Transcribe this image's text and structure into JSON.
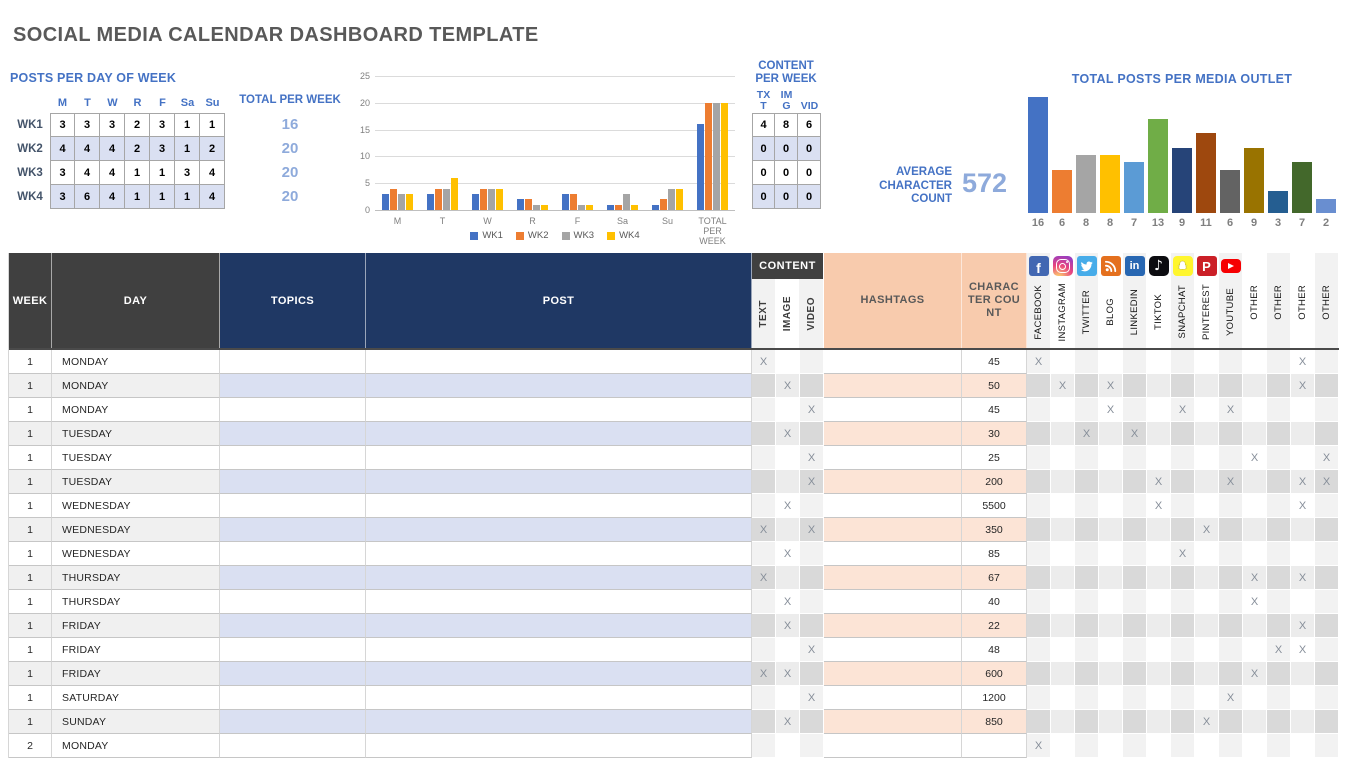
{
  "title": "SOCIAL MEDIA CALENDAR DASHBOARD TEMPLATE",
  "theme": {
    "accent_blue": "#4472C4",
    "light_blue_value": "#8EAADB",
    "navy_header": "#1F3864",
    "dark_gray_header": "#404040",
    "peach_header": "#F8CBAD",
    "peach_row": "#FCE4D6",
    "lavender_row": "#DAE0F2",
    "title_gray": "#595959"
  },
  "posts_per_day": {
    "heading": "POSTS PER DAY OF WEEK",
    "day_headers": [
      "M",
      "T",
      "W",
      "R",
      "F",
      "Sa",
      "Su"
    ],
    "rows": [
      {
        "label": "WK1",
        "values": [
          "3",
          "3",
          "3",
          "2",
          "3",
          "1",
          "1"
        ]
      },
      {
        "label": "WK2",
        "values": [
          "4",
          "4",
          "4",
          "2",
          "3",
          "1",
          "2"
        ]
      },
      {
        "label": "WK3",
        "values": [
          "3",
          "4",
          "4",
          "1",
          "1",
          "3",
          "4"
        ]
      },
      {
        "label": "WK4",
        "values": [
          "3",
          "6",
          "4",
          "1",
          "1",
          "1",
          "4"
        ]
      }
    ]
  },
  "totals_per_week": {
    "heading": "TOTAL PER WEEK",
    "values": [
      "16",
      "20",
      "20",
      "20"
    ]
  },
  "content_per_week": {
    "heading": "CONTENT PER WEEK",
    "columns": [
      "TXT",
      "IMG",
      "VID"
    ],
    "rows": [
      [
        "4",
        "8",
        "6"
      ],
      [
        "0",
        "0",
        "0"
      ],
      [
        "0",
        "0",
        "0"
      ],
      [
        "0",
        "0",
        "0"
      ]
    ]
  },
  "average_character_count": {
    "label": "AVERAGE CHARACTER COUNT",
    "value": "572"
  },
  "chart_data": [
    {
      "type": "bar",
      "title": "POSTS PER DAY OF WEEK BY WEEK",
      "categories": [
        "M",
        "T",
        "W",
        "R",
        "F",
        "Sa",
        "Su",
        "TOTAL PER WEEK"
      ],
      "series": [
        {
          "name": "WK1",
          "color": "#4472C4",
          "values": [
            3,
            3,
            3,
            2,
            3,
            1,
            1,
            16
          ]
        },
        {
          "name": "WK2",
          "color": "#ED7D31",
          "values": [
            4,
            4,
            4,
            2,
            3,
            1,
            2,
            20
          ]
        },
        {
          "name": "WK3",
          "color": "#A5A5A5",
          "values": [
            3,
            4,
            4,
            1,
            1,
            3,
            4,
            20
          ]
        },
        {
          "name": "WK4",
          "color": "#FFC000",
          "values": [
            3,
            6,
            4,
            1,
            1,
            1,
            4,
            20
          ]
        }
      ],
      "ylim": [
        0,
        25
      ],
      "yticks": [
        0,
        5,
        10,
        15,
        20,
        25
      ],
      "grid": true,
      "legend_position": "bottom"
    },
    {
      "type": "bar",
      "title": "TOTAL POSTS PER MEDIA OUTLET",
      "categories": [
        "FACEBOOK",
        "INSTAGRAM",
        "TWITTER",
        "BLOG",
        "LINKEDIN",
        "TIKTOK",
        "SNAPCHAT",
        "PINTEREST",
        "YOUTUBE",
        "OTHER",
        "OTHER",
        "OTHER",
        "OTHER"
      ],
      "values": [
        16,
        6,
        8,
        8,
        7,
        13,
        9,
        11,
        6,
        9,
        3,
        7,
        2
      ],
      "colors": [
        "#4472C4",
        "#ED7D31",
        "#A5A5A5",
        "#FFC000",
        "#5B9BD5",
        "#70AD47",
        "#264478",
        "#9E480E",
        "#636363",
        "#997300",
        "#255E91",
        "#43682B",
        "#698ED0"
      ],
      "value_labels": "below",
      "ylim": [
        0,
        16
      ],
      "grid": false,
      "legend_position": "none"
    }
  ],
  "table": {
    "mark": "X",
    "headers": {
      "week": "WEEK",
      "day": "DAY",
      "topics": "TOPICS",
      "post": "POST",
      "content_group": "CONTENT",
      "text": "TEXT",
      "image": "IMAGE",
      "video": "VIDEO",
      "hashtags": "HASHTAGS",
      "character_count": "CHARACTER COUNT"
    },
    "social_columns": [
      {
        "key": "facebook",
        "label": "FACEBOOK",
        "icon": "facebook-icon"
      },
      {
        "key": "instagram",
        "label": "INSTAGRAM",
        "icon": "instagram-icon"
      },
      {
        "key": "twitter",
        "label": "TWITTER",
        "icon": "twitter-icon"
      },
      {
        "key": "blog",
        "label": "BLOG",
        "icon": "blog-icon"
      },
      {
        "key": "linkedin",
        "label": "LINKEDIN",
        "icon": "linkedin-icon"
      },
      {
        "key": "tiktok",
        "label": "TIKTOK",
        "icon": "tiktok-icon"
      },
      {
        "key": "snapchat",
        "label": "SNAPCHAT",
        "icon": "snapchat-icon"
      },
      {
        "key": "pinterest",
        "label": "PINTEREST",
        "icon": "pinterest-icon"
      },
      {
        "key": "youtube",
        "label": "YOUTUBE",
        "icon": "youtube-icon"
      },
      {
        "key": "other1",
        "label": "OTHER",
        "icon": null
      },
      {
        "key": "other2",
        "label": "OTHER",
        "icon": null
      },
      {
        "key": "other3",
        "label": "OTHER",
        "icon": null
      },
      {
        "key": "other4",
        "label": "OTHER",
        "icon": null
      }
    ],
    "rows": [
      {
        "week": "1",
        "day": "MONDAY",
        "topics": "",
        "post": "",
        "content": [
          "text"
        ],
        "hashtags": "",
        "character_count": "45",
        "outlets": [
          "facebook",
          "other3"
        ]
      },
      {
        "week": "1",
        "day": "MONDAY",
        "topics": "",
        "post": "",
        "content": [
          "image"
        ],
        "hashtags": "",
        "character_count": "50",
        "outlets": [
          "instagram",
          "blog",
          "other3"
        ]
      },
      {
        "week": "1",
        "day": "MONDAY",
        "topics": "",
        "post": "",
        "content": [
          "video"
        ],
        "hashtags": "",
        "character_count": "45",
        "outlets": [
          "blog",
          "snapchat",
          "youtube"
        ]
      },
      {
        "week": "1",
        "day": "TUESDAY",
        "topics": "",
        "post": "",
        "content": [
          "image"
        ],
        "hashtags": "",
        "character_count": "30",
        "outlets": [
          "twitter",
          "linkedin"
        ]
      },
      {
        "week": "1",
        "day": "TUESDAY",
        "topics": "",
        "post": "",
        "content": [
          "video"
        ],
        "hashtags": "",
        "character_count": "25",
        "outlets": [
          "other1",
          "other4"
        ]
      },
      {
        "week": "1",
        "day": "TUESDAY",
        "topics": "",
        "post": "",
        "content": [
          "video"
        ],
        "hashtags": "",
        "character_count": "200",
        "outlets": [
          "tiktok",
          "youtube",
          "other3",
          "other4"
        ]
      },
      {
        "week": "1",
        "day": "WEDNESDAY",
        "topics": "",
        "post": "",
        "content": [
          "image"
        ],
        "hashtags": "",
        "character_count": "5500",
        "outlets": [
          "tiktok",
          "other3"
        ]
      },
      {
        "week": "1",
        "day": "WEDNESDAY",
        "topics": "",
        "post": "",
        "content": [
          "text",
          "video"
        ],
        "hashtags": "",
        "character_count": "350",
        "outlets": [
          "pinterest"
        ]
      },
      {
        "week": "1",
        "day": "WEDNESDAY",
        "topics": "",
        "post": "",
        "content": [
          "image"
        ],
        "hashtags": "",
        "character_count": "85",
        "outlets": [
          "snapchat"
        ]
      },
      {
        "week": "1",
        "day": "THURSDAY",
        "topics": "",
        "post": "",
        "content": [
          "text"
        ],
        "hashtags": "",
        "character_count": "67",
        "outlets": [
          "other1",
          "other3"
        ]
      },
      {
        "week": "1",
        "day": "THURSDAY",
        "topics": "",
        "post": "",
        "content": [
          "image"
        ],
        "hashtags": "",
        "character_count": "40",
        "outlets": [
          "other1"
        ]
      },
      {
        "week": "1",
        "day": "FRIDAY",
        "topics": "",
        "post": "",
        "content": [
          "image"
        ],
        "hashtags": "",
        "character_count": "22",
        "outlets": [
          "other3"
        ]
      },
      {
        "week": "1",
        "day": "FRIDAY",
        "topics": "",
        "post": "",
        "content": [
          "video"
        ],
        "hashtags": "",
        "character_count": "48",
        "outlets": [
          "other2",
          "other3"
        ]
      },
      {
        "week": "1",
        "day": "FRIDAY",
        "topics": "",
        "post": "",
        "content": [
          "text",
          "image"
        ],
        "hashtags": "",
        "character_count": "600",
        "outlets": [
          "other1"
        ]
      },
      {
        "week": "1",
        "day": "SATURDAY",
        "topics": "",
        "post": "",
        "content": [
          "video"
        ],
        "hashtags": "",
        "character_count": "1200",
        "outlets": [
          "youtube"
        ]
      },
      {
        "week": "1",
        "day": "SUNDAY",
        "topics": "",
        "post": "",
        "content": [
          "image"
        ],
        "hashtags": "",
        "character_count": "850",
        "outlets": [
          "pinterest"
        ]
      },
      {
        "week": "2",
        "day": "MONDAY",
        "topics": "",
        "post": "",
        "content": [],
        "hashtags": "",
        "character_count": "",
        "outlets": [
          "facebook"
        ]
      }
    ]
  }
}
